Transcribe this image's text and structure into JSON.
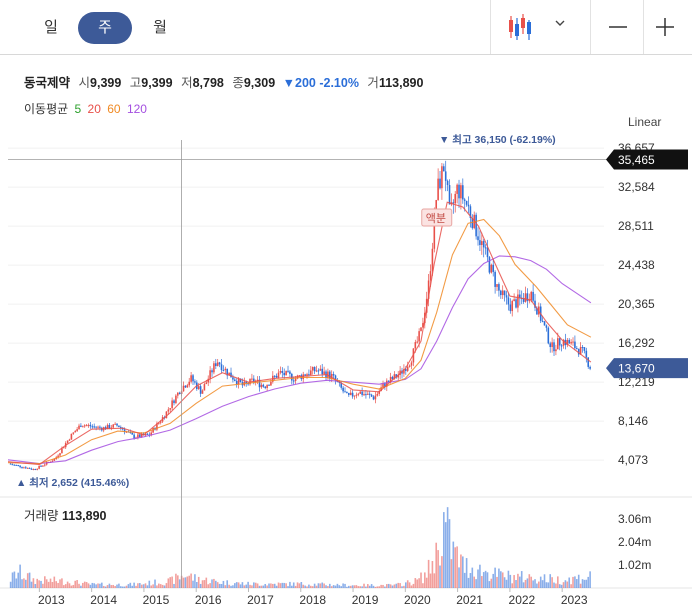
{
  "tabs": [
    {
      "label": "일",
      "active": false
    },
    {
      "label": "주",
      "active": true
    },
    {
      "label": "월",
      "active": false
    }
  ],
  "toolbar": {
    "chart_type_icon": "candlestick-icon",
    "dropdown_icon": "chevron-down-icon",
    "zoom_out_icon": "minus-icon",
    "zoom_in_icon": "plus-icon"
  },
  "stock": {
    "name": "동국제약",
    "open_label": "시",
    "open": "9,399",
    "high_label": "고",
    "high": "9,399",
    "low_label": "저",
    "low": "8,798",
    "close_label": "종",
    "close": "9,309",
    "change": "▼200 -2.10%",
    "volume_label": "거",
    "volume": "113,890"
  },
  "ma_legend": {
    "label": "이동평균",
    "items": [
      {
        "period": "5",
        "color": "#2ca02c"
      },
      {
        "period": "20",
        "color": "#e8504a"
      },
      {
        "period": "60",
        "color": "#f08a24"
      },
      {
        "period": "120",
        "color": "#a44fe0"
      }
    ]
  },
  "scale_mode": "Linear",
  "volume_header": {
    "label": "거래량",
    "value": "113,890"
  },
  "colors": {
    "up": "#e8504a",
    "down": "#2b6ed8",
    "accent": "#3d5a98",
    "ma120": "#a44fe0",
    "ma60": "#f08a24",
    "ma20": "#e8504a"
  },
  "chart_data": {
    "type": "candlestick",
    "x_ticks": [
      "2013",
      "2014",
      "2015",
      "2016",
      "2017",
      "2018",
      "2019",
      "2020",
      "2021",
      "2022",
      "2023"
    ],
    "x_range": [
      2012.4,
      2023.8
    ],
    "y_ticks": [
      "36,657",
      "32,584",
      "28,511",
      "24,438",
      "20,365",
      "16,292",
      "12,219",
      "8,146",
      "4,073"
    ],
    "y_tick_values": [
      36657,
      32584,
      28511,
      24438,
      20365,
      16292,
      12219,
      8146,
      4073
    ],
    "y_range": [
      2200,
      37500
    ],
    "crosshair_price": {
      "label": "35,465",
      "value": 35465
    },
    "crosshair_date": 2015.72,
    "last_price": {
      "label": "13,670",
      "value": 13670
    },
    "max_annotation": {
      "text": "▼ 최고 36,150 (-62.19%)",
      "date": 2020.72,
      "value": 36150
    },
    "min_annotation": {
      "text": "▲ 최저 2,652 (415.46%)",
      "date": 2012.9,
      "value": 2652
    },
    "event_label": {
      "text": "액분",
      "date": 2020.62
    },
    "price_path": [
      [
        2012.4,
        3700
      ],
      [
        2012.9,
        3100
      ],
      [
        2013.3,
        4200
      ],
      [
        2013.6,
        6600
      ],
      [
        2013.8,
        7800
      ],
      [
        2014.2,
        7400
      ],
      [
        2014.5,
        7700
      ],
      [
        2014.8,
        6500
      ],
      [
        2015.1,
        6700
      ],
      [
        2015.4,
        8800
      ],
      [
        2015.7,
        11500
      ],
      [
        2015.9,
        12600
      ],
      [
        2016.1,
        11200
      ],
      [
        2016.4,
        14500
      ],
      [
        2016.6,
        13200
      ],
      [
        2016.9,
        11800
      ],
      [
        2017.1,
        12400
      ],
      [
        2017.3,
        11800
      ],
      [
        2017.6,
        13200
      ],
      [
        2017.9,
        12600
      ],
      [
        2018.1,
        13100
      ],
      [
        2018.3,
        13500
      ],
      [
        2018.6,
        12800
      ],
      [
        2018.9,
        10600
      ],
      [
        2019.1,
        11200
      ],
      [
        2019.4,
        10600
      ],
      [
        2019.6,
        12000
      ],
      [
        2019.9,
        13100
      ],
      [
        2020.1,
        14500
      ],
      [
        2020.3,
        17500
      ],
      [
        2020.45,
        22500
      ],
      [
        2020.6,
        32000
      ],
      [
        2020.75,
        35000
      ],
      [
        2020.85,
        29500
      ],
      [
        2021.0,
        32500
      ],
      [
        2021.2,
        30500
      ],
      [
        2021.4,
        27500
      ],
      [
        2021.6,
        24500
      ],
      [
        2021.8,
        21500
      ],
      [
        2022.0,
        20200
      ],
      [
        2022.2,
        20800
      ],
      [
        2022.4,
        21600
      ],
      [
        2022.6,
        18800
      ],
      [
        2022.8,
        15800
      ],
      [
        2023.0,
        16600
      ],
      [
        2023.2,
        16100
      ],
      [
        2023.4,
        15300
      ],
      [
        2023.55,
        13670
      ]
    ],
    "ma20": [
      [
        2012.4,
        3900
      ],
      [
        2013.0,
        3600
      ],
      [
        2013.5,
        5600
      ],
      [
        2014.0,
        7300
      ],
      [
        2014.6,
        7400
      ],
      [
        2015.0,
        6700
      ],
      [
        2015.5,
        9000
      ],
      [
        2016.0,
        11800
      ],
      [
        2016.5,
        13200
      ],
      [
        2017.0,
        12200
      ],
      [
        2017.5,
        12600
      ],
      [
        2018.0,
        12800
      ],
      [
        2018.5,
        13000
      ],
      [
        2019.0,
        11400
      ],
      [
        2019.5,
        11200
      ],
      [
        2020.0,
        13600
      ],
      [
        2020.3,
        16500
      ],
      [
        2020.55,
        24500
      ],
      [
        2020.8,
        31000
      ],
      [
        2021.1,
        30500
      ],
      [
        2021.4,
        28500
      ],
      [
        2021.7,
        24800
      ],
      [
        2022.0,
        21200
      ],
      [
        2022.4,
        20800
      ],
      [
        2022.7,
        18500
      ],
      [
        2023.0,
        16600
      ],
      [
        2023.55,
        14300
      ]
    ],
    "ma60": [
      [
        2012.4,
        3800
      ],
      [
        2013.0,
        3700
      ],
      [
        2013.5,
        4600
      ],
      [
        2014.0,
        6200
      ],
      [
        2014.5,
        7100
      ],
      [
        2015.0,
        6900
      ],
      [
        2015.5,
        7900
      ],
      [
        2016.0,
        10000
      ],
      [
        2016.5,
        11800
      ],
      [
        2017.0,
        12100
      ],
      [
        2017.5,
        12400
      ],
      [
        2018.0,
        12700
      ],
      [
        2018.5,
        12700
      ],
      [
        2019.0,
        12000
      ],
      [
        2019.5,
        11500
      ],
      [
        2020.0,
        12600
      ],
      [
        2020.3,
        14500
      ],
      [
        2020.6,
        19500
      ],
      [
        2020.9,
        25500
      ],
      [
        2021.2,
        28800
      ],
      [
        2021.5,
        29200
      ],
      [
        2021.8,
        27500
      ],
      [
        2022.1,
        24500
      ],
      [
        2022.5,
        22200
      ],
      [
        2022.8,
        20200
      ],
      [
        2023.1,
        18200
      ],
      [
        2023.55,
        16900
      ]
    ],
    "ma120": [
      [
        2012.4,
        4100
      ],
      [
        2013.0,
        3700
      ],
      [
        2013.5,
        4000
      ],
      [
        2014.0,
        5100
      ],
      [
        2014.5,
        6000
      ],
      [
        2015.0,
        6500
      ],
      [
        2015.5,
        7200
      ],
      [
        2016.0,
        8400
      ],
      [
        2016.5,
        9700
      ],
      [
        2017.0,
        10700
      ],
      [
        2017.5,
        11500
      ],
      [
        2018.0,
        12100
      ],
      [
        2018.5,
        12400
      ],
      [
        2019.0,
        12200
      ],
      [
        2019.5,
        12000
      ],
      [
        2020.0,
        12500
      ],
      [
        2020.3,
        13600
      ],
      [
        2020.6,
        16500
      ],
      [
        2020.9,
        20000
      ],
      [
        2021.2,
        23000
      ],
      [
        2021.5,
        24600
      ],
      [
        2021.8,
        25400
      ],
      [
        2022.1,
        25300
      ],
      [
        2022.4,
        24900
      ],
      [
        2022.7,
        24000
      ],
      [
        2023.0,
        22500
      ],
      [
        2023.55,
        20500
      ]
    ],
    "volume": {
      "y_ticks": [
        "3.06m",
        "2.04m",
        "1.02m"
      ],
      "y_tick_values": [
        3060000,
        2040000,
        1020000
      ],
      "y_range": [
        0,
        3900000
      ],
      "path": [
        [
          2012.4,
          300000
        ],
        [
          2012.6,
          700000
        ],
        [
          2012.9,
          350000
        ],
        [
          2013.5,
          300000
        ],
        [
          2014.0,
          150000
        ],
        [
          2014.8,
          150000
        ],
        [
          2015.5,
          300000
        ],
        [
          2015.8,
          600000
        ],
        [
          2016.0,
          400000
        ],
        [
          2016.5,
          250000
        ],
        [
          2017.0,
          180000
        ],
        [
          2018.0,
          180000
        ],
        [
          2019.0,
          120000
        ],
        [
          2019.8,
          120000
        ],
        [
          2020.2,
          300000
        ],
        [
          2020.4,
          600000
        ],
        [
          2020.6,
          1500000
        ],
        [
          2020.75,
          2900000
        ],
        [
          2020.9,
          1700000
        ],
        [
          2021.1,
          1000000
        ],
        [
          2021.4,
          800000
        ],
        [
          2021.7,
          600000
        ],
        [
          2022.0,
          500000
        ],
        [
          2022.5,
          450000
        ],
        [
          2023.0,
          350000
        ],
        [
          2023.55,
          500000
        ]
      ]
    }
  }
}
